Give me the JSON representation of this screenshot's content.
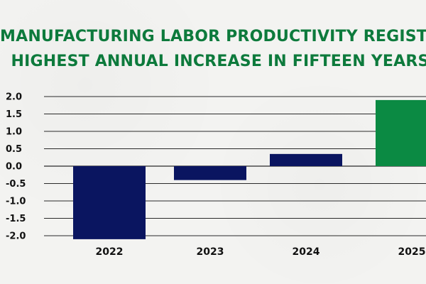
{
  "colors": {
    "title": "#0d7a3c",
    "bar_default": "#0a1560",
    "bar_highlight": "#0b8a43",
    "gridline": "#2a2a2a",
    "background": "#f3f3f1"
  },
  "chart_data": {
    "type": "bar",
    "title_lines": [
      "MANUFACTURING LABOR PRODUCTIVITY REGISTERS",
      "HIGHEST ANNUAL INCREASE IN FIFTEEN YEARS"
    ],
    "categories": [
      "2022",
      "2023",
      "2024",
      "2025"
    ],
    "values": [
      -2.1,
      -0.4,
      0.35,
      1.9
    ],
    "highlight_index": 3,
    "yticks": [
      2.0,
      1.5,
      1.0,
      0.5,
      0.0,
      -0.5,
      -1.0,
      -1.5,
      -2.0
    ],
    "ytick_labels": [
      "2.0",
      "1.5",
      "1.0",
      "0.5",
      "0.0",
      "-0.5",
      "-1.0",
      "-1.5",
      "-2.0"
    ],
    "ylim": [
      -2.0,
      2.0
    ],
    "xlabel": "",
    "ylabel": "",
    "grid": true
  }
}
